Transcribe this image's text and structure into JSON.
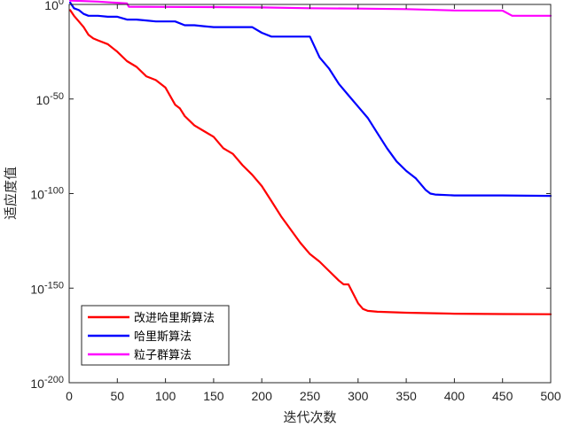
{
  "chart_data": {
    "type": "line",
    "xlabel": "迭代次数",
    "ylabel": "适应度值",
    "xlim": [
      0,
      500
    ],
    "ylim_log10": [
      -200,
      0
    ],
    "y_scale": "log",
    "grid": false,
    "legend_placement": "bottom-left",
    "x_ticks": [
      "0",
      "50",
      "100",
      "150",
      "200",
      "250",
      "300",
      "350",
      "400",
      "450",
      "500"
    ],
    "y_ticks": [
      {
        "base": "10",
        "exp": "0"
      },
      {
        "base": "10",
        "exp": "-50"
      },
      {
        "base": "10",
        "exp": "-100"
      },
      {
        "base": "10",
        "exp": "-150"
      },
      {
        "base": "10",
        "exp": "-200"
      }
    ],
    "series": [
      {
        "name": "改进哈里斯算法",
        "color": "#ff0000",
        "x": [
          1,
          5,
          10,
          15,
          20,
          25,
          30,
          40,
          50,
          60,
          70,
          80,
          90,
          100,
          110,
          115,
          120,
          130,
          140,
          150,
          160,
          170,
          180,
          190,
          200,
          210,
          220,
          230,
          240,
          250,
          260,
          270,
          280,
          285,
          290,
          300,
          305,
          310,
          320,
          350,
          400,
          450,
          500
        ],
        "log10_y": [
          -3,
          -6,
          -9,
          -12,
          -16,
          -18,
          -19,
          -21,
          -25,
          -30,
          -33,
          -38,
          -40,
          -44,
          -53,
          -55,
          -59,
          -64,
          -67,
          -70,
          -76,
          -79,
          -85,
          -90,
          -96,
          -104,
          -112,
          -119,
          -126,
          -132,
          -136,
          -141,
          -146,
          -148,
          -148,
          -158,
          -161,
          -162,
          -162.5,
          -163,
          -163.5,
          -163.7,
          -163.8
        ]
      },
      {
        "name": "哈里斯算法",
        "color": "#0000ff",
        "x": [
          1,
          5,
          10,
          15,
          20,
          30,
          40,
          50,
          60,
          70,
          80,
          90,
          100,
          110,
          120,
          130,
          140,
          150,
          170,
          190,
          200,
          210,
          220,
          250,
          260,
          270,
          280,
          290,
          300,
          310,
          320,
          330,
          340,
          350,
          360,
          370,
          375,
          380,
          400,
          450,
          500
        ],
        "log10_y": [
          1,
          -2,
          -3,
          -5,
          -6,
          -6,
          -6.5,
          -6.5,
          -8,
          -8,
          -8.5,
          -9,
          -9,
          -9,
          -11,
          -11,
          -11.5,
          -12,
          -12,
          -12,
          -15,
          -17,
          -17,
          -17,
          -28,
          -34,
          -42,
          -48,
          -54,
          -60,
          -68,
          -76,
          -83,
          -88,
          -92,
          -98,
          -100,
          -100.5,
          -101,
          -101,
          -101.2
        ]
      },
      {
        "name": "粒子群算法",
        "color": "#ff00ff",
        "x": [
          1,
          30,
          60,
          62,
          100,
          150,
          200,
          250,
          300,
          350,
          400,
          450,
          460,
          500
        ],
        "log10_y": [
          2,
          1.5,
          0.5,
          -1.2,
          -1.3,
          -1.4,
          -1.6,
          -2.0,
          -2.2,
          -2.5,
          -3.2,
          -3.3,
          -6.0,
          -6.0
        ]
      }
    ]
  }
}
